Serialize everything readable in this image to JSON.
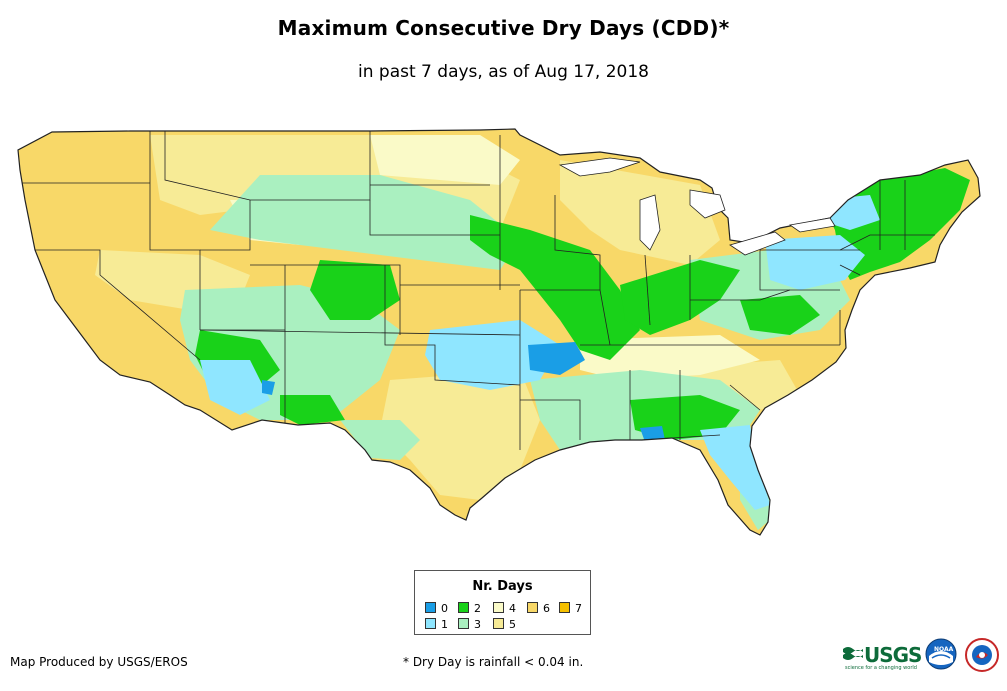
{
  "title": "Maximum Consecutive Dry Days (CDD)*",
  "subtitle": "in past 7 days, as of Aug 17, 2018",
  "legend": {
    "title": "Nr. Days",
    "items": [
      {
        "label": "0",
        "color": "#1a9ee6"
      },
      {
        "label": "1",
        "color": "#8fe6ff"
      },
      {
        "label": "2",
        "color": "#19d219"
      },
      {
        "label": "3",
        "color": "#aaf0c0"
      },
      {
        "label": "4",
        "color": "#fafac8"
      },
      {
        "label": "5",
        "color": "#f7eb96"
      },
      {
        "label": "6",
        "color": "#f8d868"
      },
      {
        "label": "7",
        "color": "#f5c000"
      }
    ]
  },
  "credit": "Map Produced by USGS/EROS",
  "footnote": "* Dry Day is rainfall < 0.04 in.",
  "logos": {
    "usgs": "USGS",
    "usgs_tagline": "science for a changing world",
    "noaa": "NOAA"
  }
}
